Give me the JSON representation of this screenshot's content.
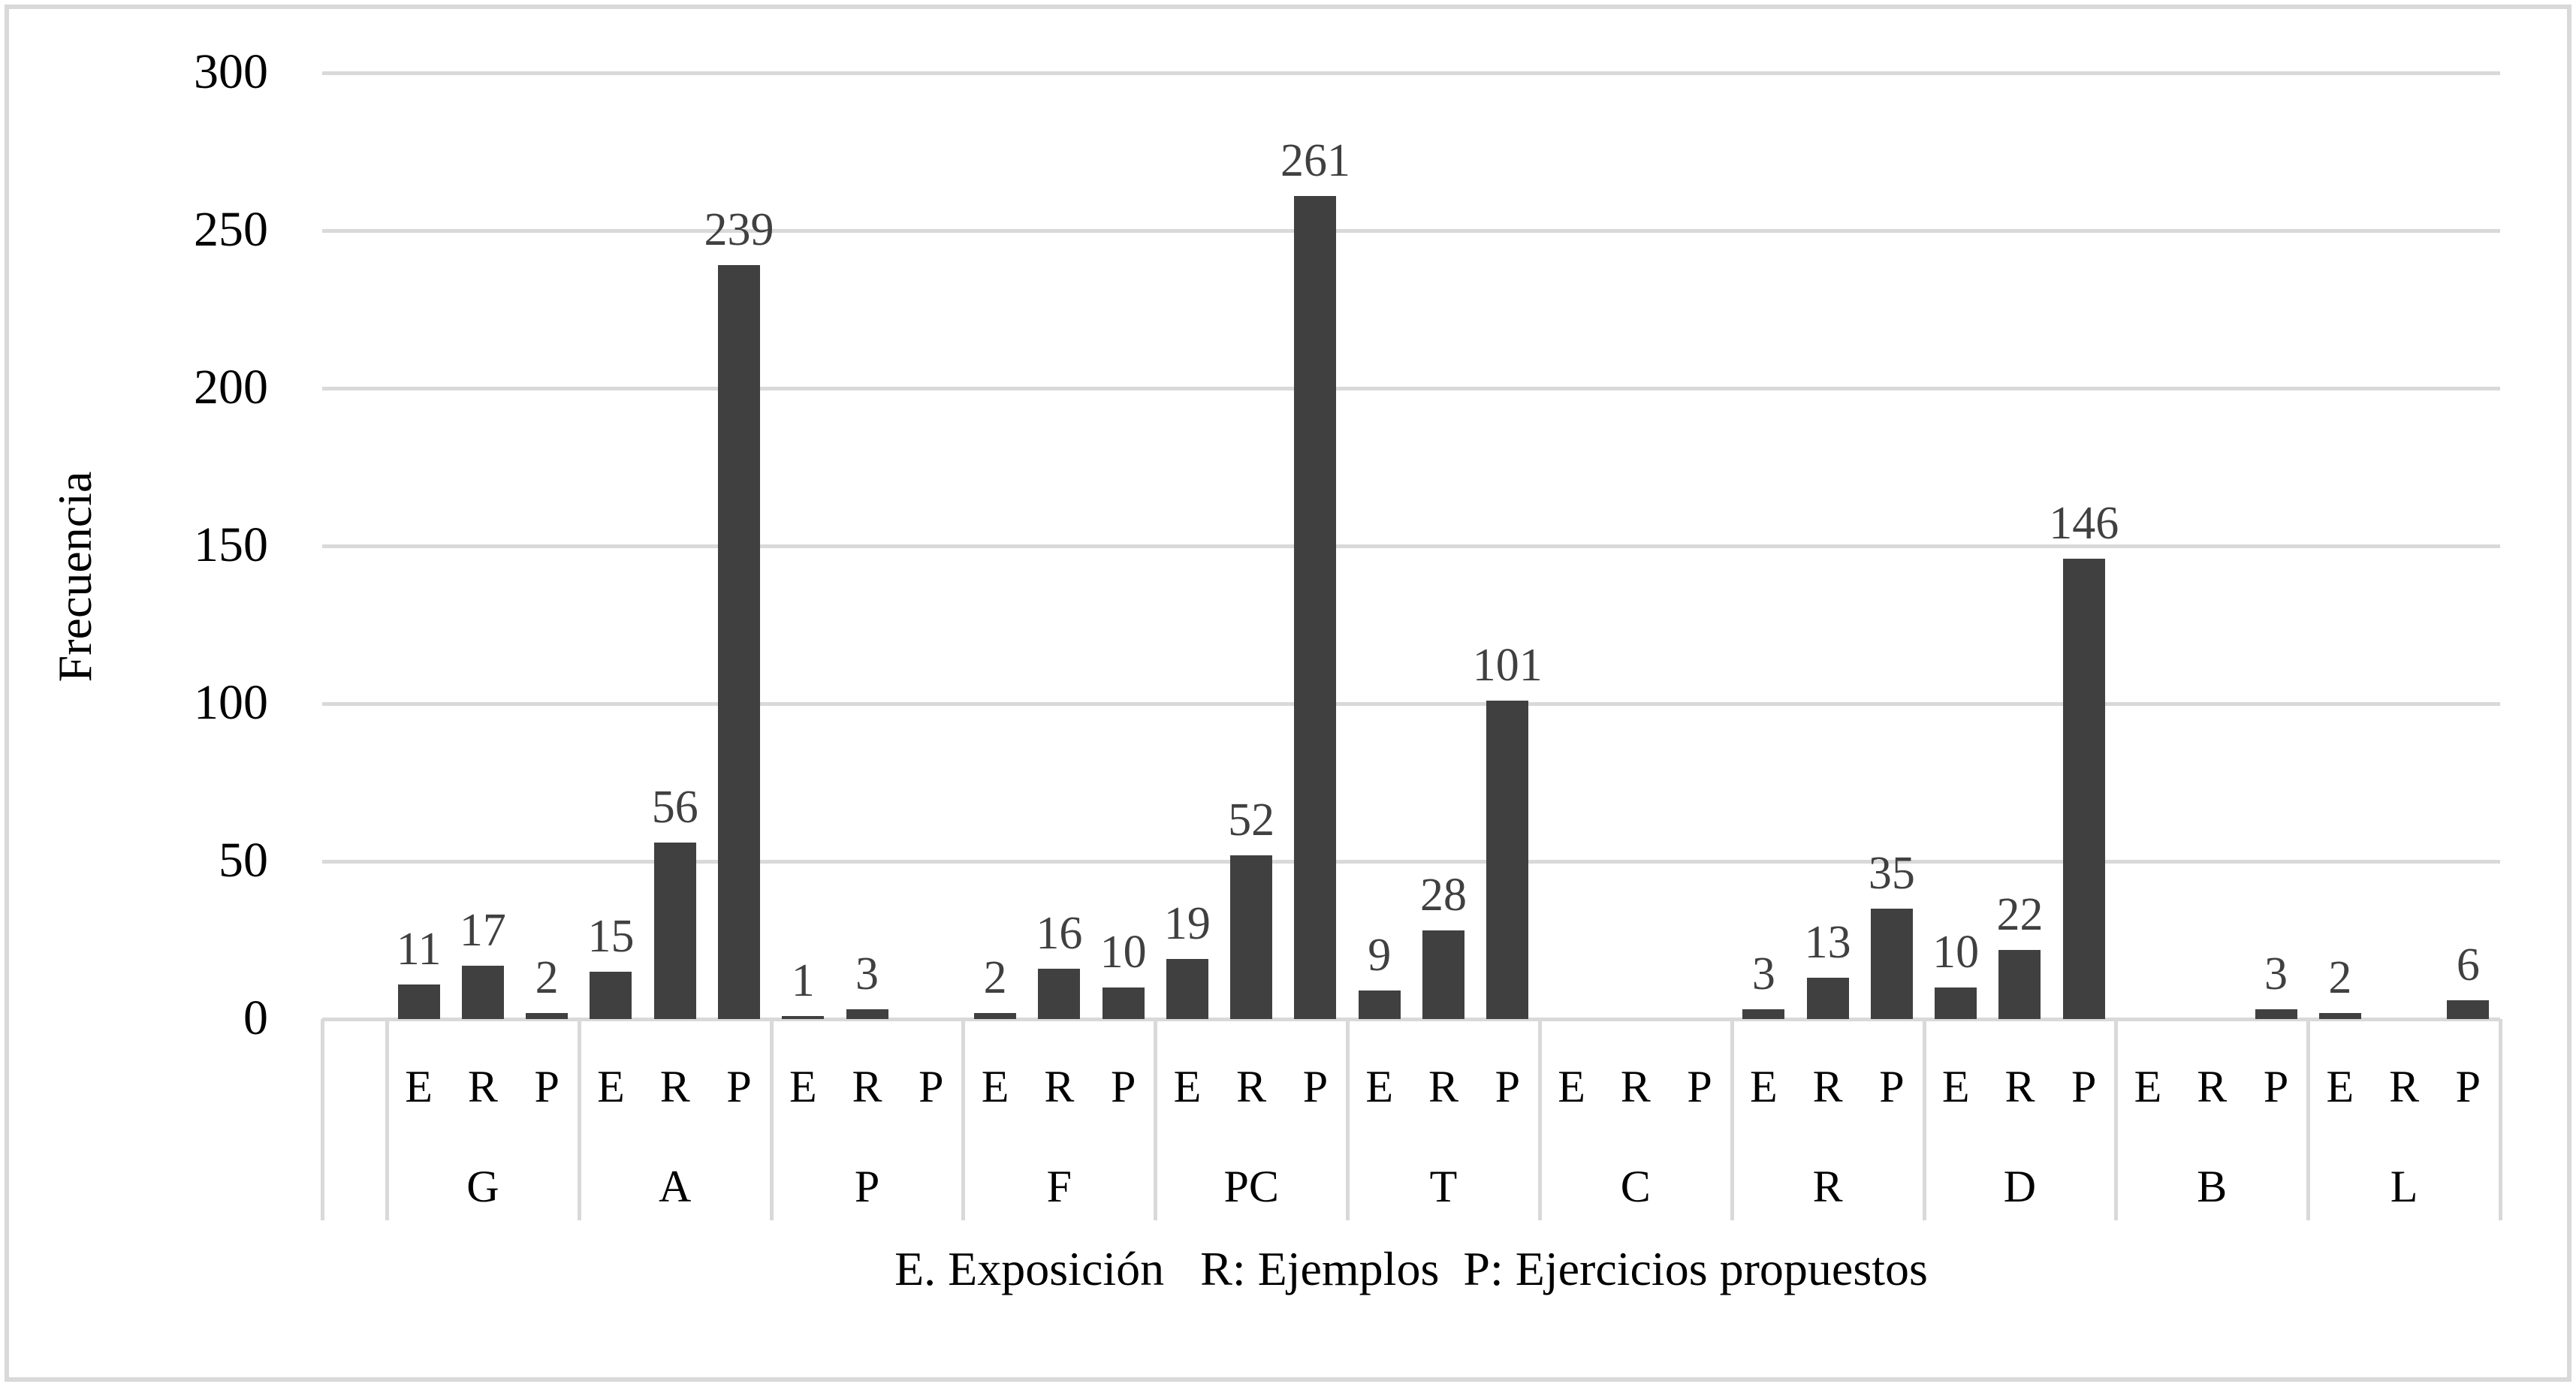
{
  "chart_data": {
    "type": "bar",
    "title": "",
    "xlabel": "E. Exposición   R: Ejemplos  P: Ejercicios propuestos",
    "ylabel": "Frecuencia",
    "ylim": [
      0,
      300
    ],
    "yticks": [
      0,
      50,
      100,
      150,
      200,
      250,
      300
    ],
    "grid": true,
    "legend_position": "none",
    "bar_color": "#404040",
    "grid_color": "#d9d9d9",
    "subcategories": [
      "E",
      "R",
      "P"
    ],
    "groups": [
      {
        "name": "G",
        "values": [
          11,
          17,
          2
        ]
      },
      {
        "name": "A",
        "values": [
          15,
          56,
          239
        ]
      },
      {
        "name": "P",
        "values": [
          1,
          3,
          0
        ]
      },
      {
        "name": "F",
        "values": [
          2,
          16,
          10
        ]
      },
      {
        "name": "PC",
        "values": [
          19,
          52,
          261
        ]
      },
      {
        "name": "T",
        "values": [
          9,
          28,
          101
        ]
      },
      {
        "name": "C",
        "values": [
          0,
          0,
          0
        ]
      },
      {
        "name": "R",
        "values": [
          3,
          13,
          35
        ]
      },
      {
        "name": "D",
        "values": [
          10,
          22,
          146
        ]
      },
      {
        "name": "B",
        "values": [
          0,
          0,
          3
        ]
      },
      {
        "name": "L",
        "values": [
          2,
          0,
          6
        ]
      }
    ],
    "data_labels": [
      [
        "11",
        "17",
        "2"
      ],
      [
        "15",
        "56",
        "239"
      ],
      [
        "1",
        "3",
        ""
      ],
      [
        "2",
        "16",
        "10"
      ],
      [
        "19",
        "52",
        "261"
      ],
      [
        "9",
        "28",
        "101"
      ],
      [
        "",
        "",
        ""
      ],
      [
        "3",
        "13",
        "35"
      ],
      [
        "10",
        "22",
        "146"
      ],
      [
        "",
        "",
        "3"
      ],
      [
        "2",
        "",
        "6"
      ]
    ]
  },
  "axis": {
    "ylabel": "Frecuencia",
    "ytick_labels": [
      "300",
      "250",
      "200",
      "150",
      "100",
      "50",
      "0"
    ]
  },
  "legend": {
    "text": "E. Exposición   R: Ejemplos  P: Ejercicios propuestos"
  }
}
